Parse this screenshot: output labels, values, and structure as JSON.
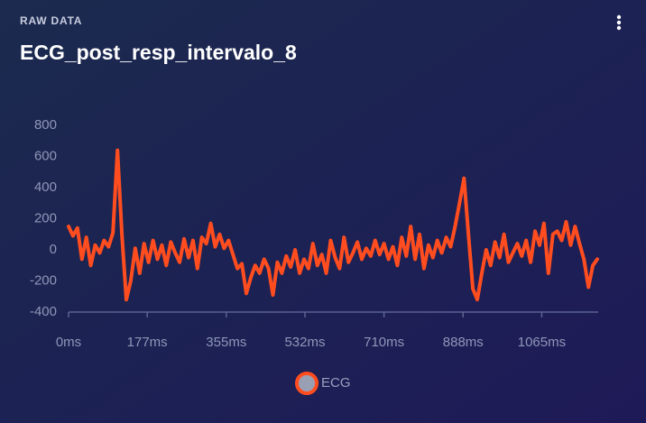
{
  "subtitle": "RAW DATA",
  "chart_data": {
    "type": "line",
    "title": "ECG_post_resp_intervalo_8",
    "x": [
      0,
      10,
      20,
      30,
      40,
      50,
      60,
      70,
      80,
      90,
      100,
      110,
      120,
      130,
      140,
      150,
      160,
      170,
      180,
      190,
      200,
      210,
      220,
      230,
      240,
      250,
      260,
      270,
      280,
      290,
      300,
      310,
      320,
      330,
      340,
      350,
      360,
      370,
      380,
      390,
      400,
      410,
      420,
      430,
      440,
      450,
      460,
      470,
      480,
      490,
      500,
      510,
      520,
      530,
      540,
      550,
      560,
      570,
      580,
      590,
      600,
      610,
      620,
      630,
      640,
      650,
      660,
      670,
      680,
      690,
      700,
      710,
      720,
      730,
      740,
      750,
      760,
      770,
      780,
      790,
      800,
      810,
      820,
      830,
      840,
      850,
      860,
      870,
      880,
      890,
      900,
      910,
      920,
      930,
      940,
      950,
      960,
      970,
      980,
      990,
      1000,
      1010,
      1020,
      1030,
      1040,
      1050,
      1060,
      1070,
      1080,
      1090,
      1100,
      1110,
      1120,
      1130,
      1140,
      1150,
      1160,
      1170,
      1180,
      1190
    ],
    "series": [
      {
        "name": "ECG",
        "color": "#ff4d1f",
        "values": [
          150,
          90,
          140,
          -60,
          80,
          -100,
          30,
          -20,
          60,
          20,
          110,
          640,
          100,
          -320,
          -200,
          10,
          -150,
          40,
          -80,
          60,
          -60,
          30,
          -100,
          50,
          -20,
          -80,
          70,
          -50,
          60,
          -120,
          80,
          40,
          170,
          20,
          100,
          10,
          60,
          -30,
          -120,
          -90,
          -280,
          -180,
          -100,
          -150,
          -60,
          -120,
          -290,
          -80,
          -150,
          -40,
          -110,
          0,
          -150,
          -60,
          -120,
          40,
          -100,
          -30,
          -150,
          60,
          -50,
          -120,
          80,
          -80,
          -20,
          50,
          -60,
          10,
          -40,
          60,
          -30,
          40,
          -60,
          20,
          -100,
          80,
          -40,
          150,
          -60,
          100,
          -120,
          30,
          -50,
          60,
          -20,
          80,
          20,
          150,
          300,
          460,
          100,
          -250,
          -320,
          -150,
          0,
          -100,
          50,
          -50,
          100,
          -80,
          -20,
          40,
          -40,
          60,
          -80,
          120,
          30,
          170,
          -150,
          100,
          120,
          60,
          180,
          30,
          150,
          40,
          -60,
          -240,
          -100,
          -60
        ]
      }
    ],
    "xlim": [
      0,
      1190
    ],
    "xticks": [
      {
        "value": 0,
        "label": "0ms"
      },
      {
        "value": 177,
        "label": "177ms"
      },
      {
        "value": 355,
        "label": "355ms"
      },
      {
        "value": 532,
        "label": "532ms"
      },
      {
        "value": 710,
        "label": "710ms"
      },
      {
        "value": 888,
        "label": "888ms"
      },
      {
        "value": 1065,
        "label": "1065ms"
      }
    ],
    "ylim": [
      -400,
      800
    ],
    "yticks": [
      -400,
      -200,
      0,
      200,
      400,
      600,
      800
    ],
    "grid": false
  }
}
